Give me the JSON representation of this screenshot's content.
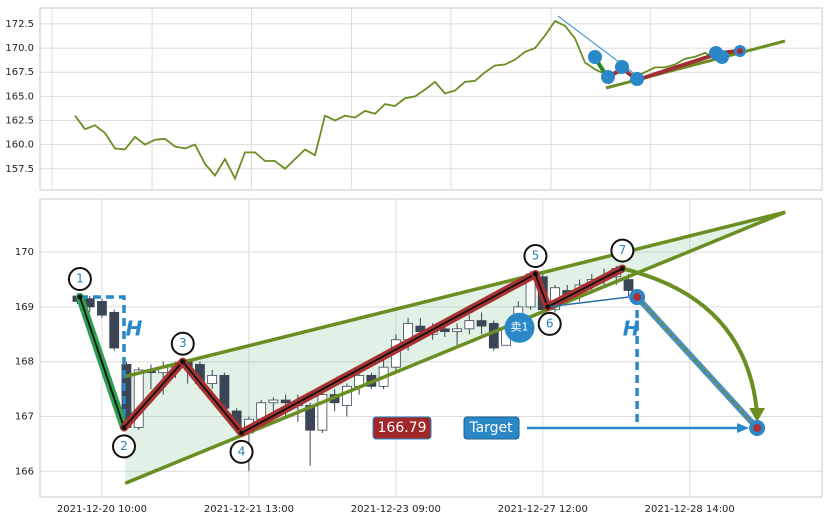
{
  "chart_data": [
    {
      "type": "line",
      "color": "#6b8e23",
      "xlim": [
        -3.5,
        74.7
      ],
      "ylim": [
        155.3,
        174.15
      ],
      "yticks": [
        {
          "value": 157.5,
          "label": "157.5"
        },
        {
          "value": 160,
          "label": "160.0"
        },
        {
          "value": 162.5,
          "label": "162.5"
        },
        {
          "value": 165,
          "label": "165.0"
        },
        {
          "value": 167.5,
          "label": "167.5"
        },
        {
          "value": 170,
          "label": "170.0"
        },
        {
          "value": 172.5,
          "label": "172.5"
        }
      ],
      "values": [
        163,
        161.6,
        162,
        161.2,
        159.6,
        159.5,
        160.8,
        160,
        160.5,
        160.6,
        159.8,
        159.6,
        160,
        158,
        156.8,
        158.5,
        156.5,
        159.2,
        159.2,
        158.3,
        158.3,
        157.5,
        158.5,
        159.5,
        158.9,
        163,
        162.5,
        163,
        162.8,
        163.5,
        163.2,
        164.2,
        164,
        164.8,
        165,
        165.7,
        166.5,
        165.3,
        165.6,
        166.5,
        166.6,
        167.5,
        168.2,
        168.3,
        168.8,
        169.6,
        170,
        171.3,
        172.8,
        172.3,
        171,
        168.5,
        167.8,
        167.3,
        167.3,
        167.6,
        167,
        167.5,
        168,
        168,
        168.3,
        168.9,
        169.1,
        169.5,
        169,
        169.6,
        169.8
      ],
      "grid": true
    },
    {
      "type": "candlestick",
      "xlim": [
        -3.06,
        60.8
      ],
      "ylim": [
        165.53,
        170.97
      ],
      "yticks": [
        166,
        167,
        168,
        169,
        170
      ],
      "xticks": [
        {
          "value": 2,
          "label": "2021-12-20 10:00"
        },
        {
          "value": 14,
          "label": "2021-12-21 13:00"
        },
        {
          "value": 26,
          "label": "2021-12-23 09:00"
        },
        {
          "value": 38,
          "label": "2021-12-27 12:00"
        },
        {
          "value": 50,
          "label": "2021-12-28 14:00"
        }
      ],
      "grid": true,
      "up_color": "#ffffff",
      "down_color": "#3b4556",
      "open": [
        169.2,
        169.15,
        169.1,
        168.9,
        167.95,
        166.8,
        167.85,
        167.8,
        167.9,
        168.0,
        167.95,
        167.6,
        167.75,
        167.1,
        166.7,
        166.95,
        167.25,
        167.3,
        167.25,
        167.2,
        166.75,
        167.4,
        167.2,
        167.55,
        167.75,
        167.55,
        167.9,
        168.4,
        168.65,
        168.5,
        168.6,
        168.55,
        168.6,
        168.75,
        168.7,
        168.3,
        168.6,
        169.0,
        169.55,
        168.95,
        169.3,
        169.2,
        169.4,
        169.5,
        169.55,
        169.5
      ],
      "high": [
        169.25,
        169.2,
        169.15,
        168.95,
        168.0,
        167.9,
        167.95,
        168.0,
        168.0,
        168.05,
        168.0,
        167.85,
        167.8,
        167.15,
        167.0,
        167.3,
        167.35,
        167.4,
        167.4,
        167.25,
        167.5,
        167.5,
        167.6,
        167.85,
        167.8,
        168.1,
        168.5,
        168.8,
        168.8,
        168.7,
        168.7,
        168.7,
        168.85,
        168.9,
        168.75,
        168.7,
        169.1,
        169.65,
        169.6,
        169.4,
        169.4,
        169.5,
        169.6,
        169.7,
        169.75,
        169.6
      ],
      "low": [
        169.05,
        168.9,
        168.8,
        168.2,
        166.75,
        166.75,
        167.5,
        167.4,
        167.7,
        167.6,
        167.5,
        167.5,
        167.0,
        166.7,
        166.0,
        166.8,
        167.1,
        167.0,
        166.9,
        166.1,
        166.7,
        167.1,
        167.0,
        167.4,
        167.5,
        167.5,
        167.8,
        168.2,
        168.4,
        168.4,
        168.45,
        168.3,
        168.5,
        168.5,
        168.2,
        168.3,
        168.5,
        168.95,
        168.9,
        168.9,
        169.1,
        169.1,
        169.3,
        169.4,
        169.4,
        169.2
      ],
      "close": [
        169.1,
        169.0,
        168.85,
        168.25,
        166.8,
        167.85,
        167.8,
        167.9,
        167.95,
        167.9,
        167.6,
        167.75,
        167.15,
        166.8,
        166.95,
        167.25,
        167.3,
        167.25,
        167.2,
        166.75,
        167.4,
        167.25,
        167.55,
        167.75,
        167.55,
        167.9,
        168.4,
        168.7,
        168.55,
        168.6,
        168.55,
        168.6,
        168.75,
        168.65,
        168.25,
        168.6,
        169.0,
        169.6,
        168.95,
        169.35,
        169.2,
        169.4,
        169.5,
        169.55,
        169.7,
        169.3
      ],
      "pattern_points": [
        {
          "label": "1",
          "x": 0.2,
          "y": 169.18
        },
        {
          "label": "2",
          "x": 3.8,
          "y": 166.8
        },
        {
          "label": "3",
          "x": 8.6,
          "y": 168.0
        },
        {
          "label": "4",
          "x": 13.4,
          "y": 166.7
        },
        {
          "label": "5",
          "x": 37.4,
          "y": 169.6
        },
        {
          "label": "6",
          "x": 38.4,
          "y": 169.0
        },
        {
          "label": "7",
          "x": 44.5,
          "y": 169.7
        }
      ],
      "triangle_upper": {
        "x": [
          3.9,
          57.8
        ],
        "y": [
          167.73,
          170.73
        ]
      },
      "triangle_lower": {
        "x": [
          3.9,
          57.8
        ],
        "y": [
          165.78,
          170.73
        ]
      },
      "height_label": "H",
      "projection": {
        "x": 45.7,
        "y": 169.18
      },
      "signal": {
        "label": "卖1",
        "x": 36.1,
        "y": 168.62
      },
      "target": {
        "label": "Target",
        "x": 55.5,
        "y": 166.79,
        "value_label": "166.79"
      }
    }
  ]
}
